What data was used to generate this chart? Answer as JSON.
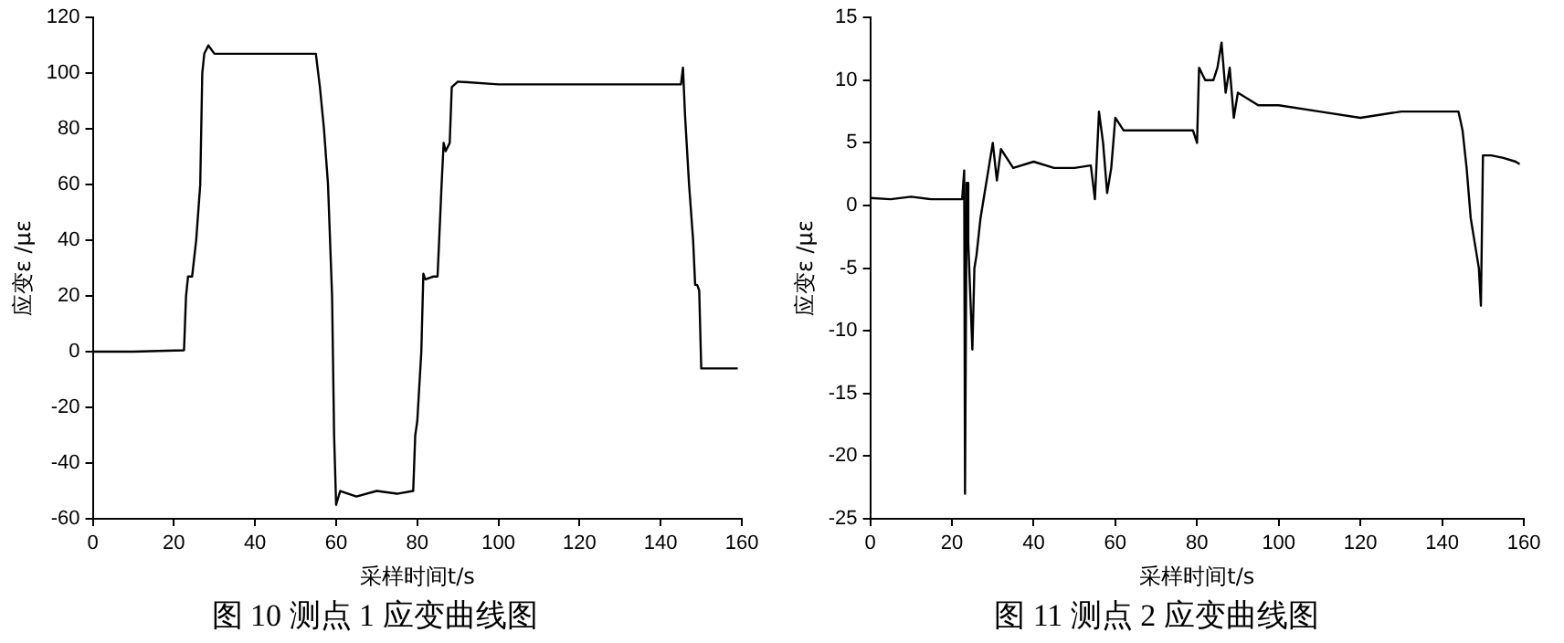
{
  "chart_data": [
    {
      "type": "line",
      "title": "图 10 测点 1 应变曲线图",
      "xlabel": "采样时间t/s",
      "ylabel": "应变ε /με",
      "xlim": [
        0,
        160
      ],
      "xticks": [
        0,
        20,
        40,
        60,
        80,
        100,
        120,
        140,
        160
      ],
      "ylim": [
        -60,
        120
      ],
      "yticks": [
        -60,
        -40,
        -20,
        0,
        20,
        40,
        60,
        80,
        100,
        120
      ],
      "marker": "none",
      "line_style": "solid",
      "series": [
        {
          "color": "#000000",
          "x": [
            0,
            10,
            22.5,
            23,
            23.5,
            24.5,
            25.5,
            26.5,
            27,
            27.5,
            28.5,
            30,
            40,
            50,
            55,
            56,
            57,
            58,
            59,
            59.5,
            60,
            61,
            65,
            70,
            75,
            79,
            79.5,
            80,
            81,
            81.5,
            82,
            84,
            85,
            86,
            86.5,
            87,
            88,
            88.5,
            90,
            100,
            110,
            120,
            130,
            140,
            145,
            145.5,
            146,
            147,
            148,
            148.5,
            149,
            149.5,
            150,
            155,
            159
          ],
          "values": [
            0,
            0,
            0.5,
            20,
            27,
            27,
            40,
            60,
            100,
            107,
            110,
            107,
            107,
            107,
            107,
            95,
            80,
            60,
            20,
            -30,
            -55,
            -50,
            -52,
            -50,
            -51,
            -50,
            -30,
            -25,
            0,
            28,
            26,
            27,
            27,
            60,
            75,
            72,
            75,
            95,
            97,
            96,
            96,
            96,
            96,
            96,
            96,
            102,
            85,
            60,
            40,
            24,
            24,
            22,
            -6,
            -6,
            -6
          ]
        }
      ]
    },
    {
      "type": "line",
      "title": "图 11 测点 2 应变曲线图",
      "xlabel": "采样时间t/s",
      "ylabel": "应变ε /με",
      "xlim": [
        0,
        160
      ],
      "xticks": [
        0,
        20,
        40,
        60,
        80,
        100,
        120,
        140,
        160
      ],
      "ylim": [
        -25,
        15
      ],
      "yticks": [
        -25,
        -20,
        -15,
        -10,
        -5,
        0,
        5,
        10,
        15
      ],
      "marker": "none",
      "line_style": "solid",
      "series": [
        {
          "color": "#000000",
          "x": [
            0,
            5,
            10,
            15,
            20,
            22.5,
            23,
            23.2,
            23.6,
            24,
            25,
            25.5,
            26,
            27,
            28,
            29,
            30,
            31,
            32,
            35,
            40,
            45,
            50,
            54,
            55,
            56,
            57,
            58,
            59,
            60,
            62,
            70,
            75,
            79,
            80,
            80.5,
            82,
            84,
            85,
            86,
            87,
            88,
            89,
            90,
            95,
            100,
            110,
            120,
            130,
            140,
            144,
            145,
            146,
            147,
            148,
            149,
            149.5,
            150,
            152,
            155,
            158,
            159
          ],
          "values": [
            0.6,
            0.5,
            0.7,
            0.5,
            0.5,
            0.5,
            2.8,
            -23,
            1.8,
            -3,
            -11.5,
            -5,
            -4,
            -1,
            1,
            3,
            5,
            2,
            4.5,
            3,
            3.5,
            3,
            3,
            3.2,
            0.5,
            7.5,
            5,
            1,
            3,
            7,
            6,
            6,
            6,
            6,
            5,
            11,
            10,
            10,
            11,
            13,
            9,
            11,
            7,
            9,
            8,
            8,
            7.5,
            7,
            7.5,
            7.5,
            7.5,
            6,
            3,
            -1,
            -3,
            -5,
            -8,
            4,
            4,
            3.8,
            3.5,
            3.3
          ]
        }
      ]
    }
  ]
}
